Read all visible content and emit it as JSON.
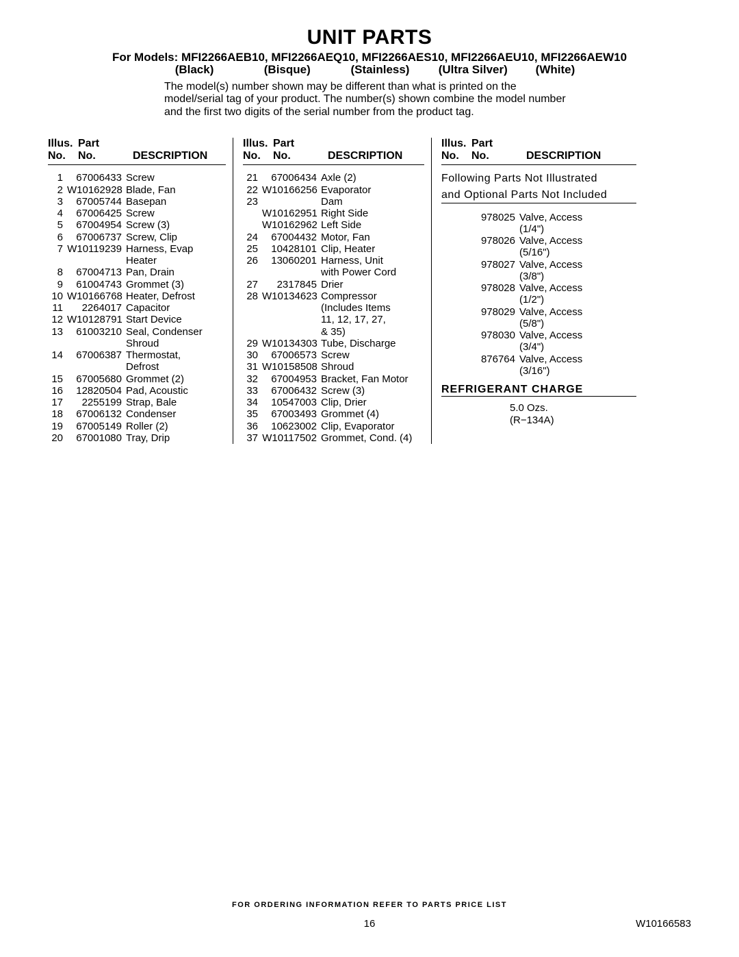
{
  "title": "UNIT PARTS",
  "models_prefix": "For Models: ",
  "models": "MFI2266AEB10, MFI2266AEQ10, MFI2266AES10, MFI2266AEU10, MFI2266AEW10",
  "colors": [
    "(Black)",
    "(Bisque)",
    "(Stainless)",
    "(Ultra Silver)",
    "(White)"
  ],
  "note": "The model(s) number shown may be different than what is printed on the model/serial tag of your product. The number(s) shown combine the model number and the first two digits of the serial number from the product tag.",
  "headers": {
    "illus1": "Illus.",
    "illus2": "No.",
    "part1": "Part",
    "part2": "No.",
    "desc": "DESCRIPTION"
  },
  "col1_rows": [
    {
      "n": "1",
      "p": "67006433",
      "d": "Screw"
    },
    {
      "n": "2",
      "p": "W10162928",
      "d": "Blade, Fan"
    },
    {
      "n": "3",
      "p": "67005744",
      "d": "Basepan"
    },
    {
      "n": "4",
      "p": "67006425",
      "d": "Screw"
    },
    {
      "n": "5",
      "p": "67004954",
      "d": "Screw (3)"
    },
    {
      "n": "6",
      "p": "67006737",
      "d": "Screw, Clip"
    },
    {
      "n": "7",
      "p": "W10119239",
      "d": "Harness, Evap"
    },
    {
      "n": "",
      "p": "",
      "d": "Heater"
    },
    {
      "n": "8",
      "p": "67004713",
      "d": "Pan, Drain"
    },
    {
      "n": "9",
      "p": "61004743",
      "d": "Grommet (3)"
    },
    {
      "n": "10",
      "p": "W10166768",
      "d": "Heater, Defrost"
    },
    {
      "n": "11",
      "p": "2264017",
      "d": "Capacitor"
    },
    {
      "n": "12",
      "p": "W10128791",
      "d": "Start Device"
    },
    {
      "n": "13",
      "p": "61003210",
      "d": "Seal, Condenser"
    },
    {
      "n": "",
      "p": "",
      "d": "Shroud"
    },
    {
      "n": "14",
      "p": "67006387",
      "d": "Thermostat,"
    },
    {
      "n": "",
      "p": "",
      "d": "Defrost"
    },
    {
      "n": "15",
      "p": "67005680",
      "d": "Grommet (2)"
    },
    {
      "n": "16",
      "p": "12820504",
      "d": "Pad, Acoustic"
    },
    {
      "n": "17",
      "p": "2255199",
      "d": "Strap, Bale"
    },
    {
      "n": "18",
      "p": "67006132",
      "d": "Condenser"
    },
    {
      "n": "19",
      "p": "67005149",
      "d": "Roller (2)"
    },
    {
      "n": "20",
      "p": "67001080",
      "d": "Tray, Drip"
    }
  ],
  "col2_rows": [
    {
      "n": "21",
      "p": "67006434",
      "d": "Axle (2)"
    },
    {
      "n": "22",
      "p": "W10166256",
      "d": "Evaporator"
    },
    {
      "n": "23",
      "p": "",
      "d": "Dam"
    },
    {
      "n": "",
      "p": "W10162951",
      "d": "Right Side"
    },
    {
      "n": "",
      "p": "W10162962",
      "d": "Left Side"
    },
    {
      "n": "24",
      "p": "67004432",
      "d": "Motor, Fan"
    },
    {
      "n": "25",
      "p": "10428101",
      "d": "Clip, Heater"
    },
    {
      "n": "26",
      "p": "13060201",
      "d": "Harness, Unit"
    },
    {
      "n": "",
      "p": "",
      "d": "with Power Cord"
    },
    {
      "n": "27",
      "p": "2317845",
      "d": "Drier"
    },
    {
      "n": "28",
      "p": "W10134623",
      "d": "Compressor"
    },
    {
      "n": "",
      "p": "",
      "d": "(Includes Items"
    },
    {
      "n": "",
      "p": "",
      "d": "11, 12, 17, 27,"
    },
    {
      "n": "",
      "p": "",
      "d": "& 35)"
    },
    {
      "n": "29",
      "p": "W10134303",
      "d": "Tube, Discharge"
    },
    {
      "n": "30",
      "p": "67006573",
      "d": "Screw"
    },
    {
      "n": "31",
      "p": "W10158508",
      "d": "Shroud"
    },
    {
      "n": "32",
      "p": "67004953",
      "d": "Bracket, Fan Motor"
    },
    {
      "n": "33",
      "p": "67006432",
      "d": "Screw (3)"
    },
    {
      "n": "34",
      "p": "10547003",
      "d": "Clip, Drier"
    },
    {
      "n": "35",
      "p": "67003493",
      "d": "Grommet (4)"
    },
    {
      "n": "36",
      "p": "10623002",
      "d": "Clip, Evaporator"
    },
    {
      "n": "37",
      "p": "W10117502",
      "d": "Grommet, Cond. (4)"
    }
  ],
  "col3_subhead1": "Following Parts Not Illustrated",
  "col3_subhead2": "and Optional Parts Not Included",
  "col3_rows": [
    {
      "n": "",
      "p": "978025",
      "d": "Valve, Access"
    },
    {
      "n": "",
      "p": "",
      "d": "(1/4\")"
    },
    {
      "n": "",
      "p": "978026",
      "d": "Valve, Access"
    },
    {
      "n": "",
      "p": "",
      "d": "(5/16\")"
    },
    {
      "n": "",
      "p": "978027",
      "d": "Valve, Access"
    },
    {
      "n": "",
      "p": "",
      "d": "(3/8\")"
    },
    {
      "n": "",
      "p": "978028",
      "d": "Valve, Access"
    },
    {
      "n": "",
      "p": "",
      "d": "(1/2\")"
    },
    {
      "n": "",
      "p": "978029",
      "d": "Valve, Access"
    },
    {
      "n": "",
      "p": "",
      "d": "(5/8\")"
    },
    {
      "n": "",
      "p": "978030",
      "d": "Valve, Access"
    },
    {
      "n": "",
      "p": "",
      "d": "(3/4\")"
    },
    {
      "n": "",
      "p": "876764",
      "d": "Valve, Access"
    },
    {
      "n": "",
      "p": "",
      "d": "(3/16\")"
    }
  ],
  "refrigerant_title": "REFRIGERANT CHARGE",
  "refrigerant_l1": "5.0 Ozs.",
  "refrigerant_l2": "(R−134A)",
  "footer_order": "FOR ORDERING INFORMATION REFER TO PARTS PRICE LIST",
  "footer_pagenum": "16",
  "footer_docnum": "W10166583"
}
